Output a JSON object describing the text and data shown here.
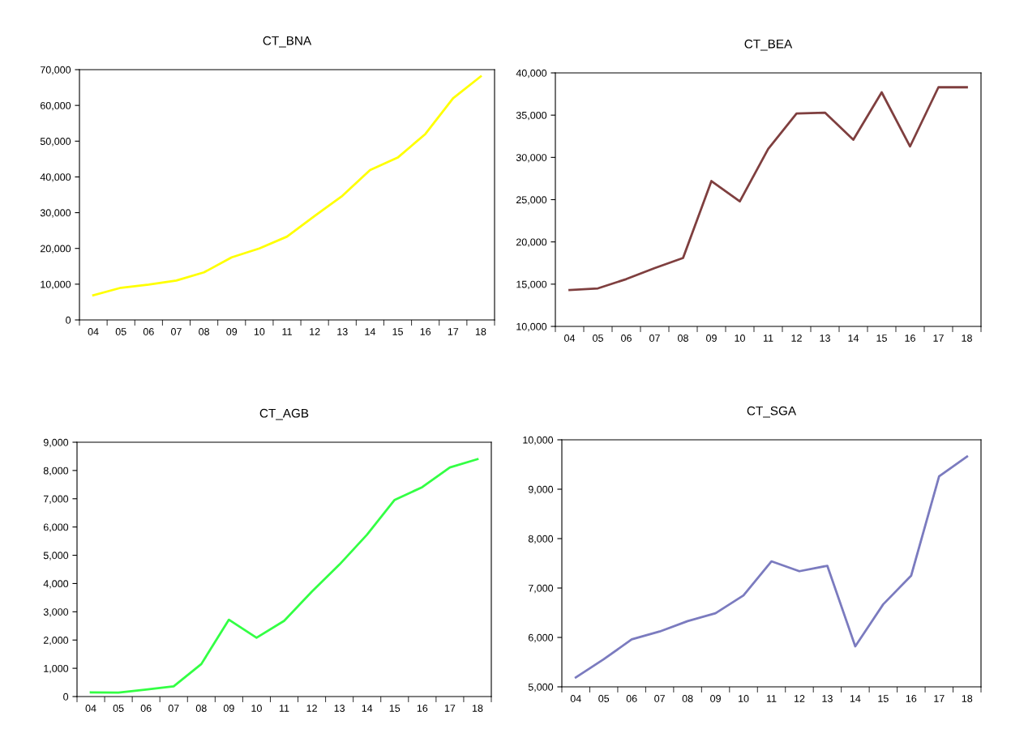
{
  "chart_data": [
    {
      "type": "line",
      "title": "CT_BNA",
      "categories": [
        "04",
        "05",
        "06",
        "07",
        "08",
        "09",
        "10",
        "11",
        "12",
        "13",
        "14",
        "15",
        "16",
        "17",
        "18"
      ],
      "series": [
        {
          "color": "#ffff00",
          "values": [
            6900,
            9000,
            9900,
            11000,
            13300,
            17500,
            20000,
            23300,
            29100,
            34700,
            41900,
            45400,
            52000,
            62000,
            68100
          ]
        }
      ],
      "ylim": [
        0,
        70000
      ],
      "yticks": [
        {
          "value": 0,
          "label": "0"
        },
        {
          "value": 10000,
          "label": "10,000"
        },
        {
          "value": 20000,
          "label": "20,000"
        },
        {
          "value": 30000,
          "label": "30,000"
        },
        {
          "value": 40000,
          "label": "40,000"
        },
        {
          "value": 50000,
          "label": "50,000"
        },
        {
          "value": 60000,
          "label": "60,000"
        },
        {
          "value": 70000,
          "label": "70,000"
        }
      ],
      "grid": false
    },
    {
      "type": "line",
      "title": "CT_BEA",
      "categories": [
        "04",
        "05",
        "06",
        "07",
        "08",
        "09",
        "10",
        "11",
        "12",
        "13",
        "14",
        "15",
        "16",
        "17",
        "18"
      ],
      "series": [
        {
          "color": "#7f3f3f",
          "values": [
            14300,
            14500,
            15600,
            16900,
            18100,
            27200,
            24800,
            31000,
            35200,
            35300,
            32100,
            37700,
            31300,
            38300,
            38300
          ]
        }
      ],
      "ylim": [
        10000,
        40000
      ],
      "yticks": [
        {
          "value": 10000,
          "label": "10,000"
        },
        {
          "value": 15000,
          "label": "15,000"
        },
        {
          "value": 20000,
          "label": "20,000"
        },
        {
          "value": 25000,
          "label": "25,000"
        },
        {
          "value": 30000,
          "label": "30,000"
        },
        {
          "value": 35000,
          "label": "35,000"
        },
        {
          "value": 40000,
          "label": "40,000"
        }
      ],
      "grid": false
    },
    {
      "type": "line",
      "title": "CT_AGB",
      "categories": [
        "04",
        "05",
        "06",
        "07",
        "08",
        "09",
        "10",
        "11",
        "12",
        "13",
        "14",
        "15",
        "16",
        "17",
        "18"
      ],
      "series": [
        {
          "color": "#33ff44",
          "values": [
            150,
            140,
            250,
            360,
            1150,
            2720,
            2080,
            2680,
            3710,
            4670,
            5730,
            6960,
            7410,
            8110,
            8400
          ]
        }
      ],
      "ylim": [
        0,
        9000
      ],
      "yticks": [
        {
          "value": 0,
          "label": "0"
        },
        {
          "value": 1000,
          "label": "1,000"
        },
        {
          "value": 2000,
          "label": "2,000"
        },
        {
          "value": 3000,
          "label": "3,000"
        },
        {
          "value": 4000,
          "label": "4,000"
        },
        {
          "value": 5000,
          "label": "5,000"
        },
        {
          "value": 6000,
          "label": "6,000"
        },
        {
          "value": 7000,
          "label": "7,000"
        },
        {
          "value": 8000,
          "label": "8,000"
        },
        {
          "value": 9000,
          "label": "9,000"
        }
      ],
      "grid": false
    },
    {
      "type": "line",
      "title": "CT_SGA",
      "categories": [
        "04",
        "05",
        "06",
        "07",
        "08",
        "09",
        "10",
        "11",
        "12",
        "13",
        "14",
        "15",
        "16",
        "17",
        "18"
      ],
      "series": [
        {
          "color": "#7b7bbf",
          "values": [
            5190,
            5560,
            5960,
            6120,
            6330,
            6490,
            6850,
            7540,
            7340,
            7450,
            5820,
            6670,
            7250,
            9260,
            9660
          ]
        }
      ],
      "ylim": [
        5000,
        10000
      ],
      "yticks": [
        {
          "value": 5000,
          "label": "5,000"
        },
        {
          "value": 6000,
          "label": "6,000"
        },
        {
          "value": 7000,
          "label": "7,000"
        },
        {
          "value": 8000,
          "label": "8,000"
        },
        {
          "value": 9000,
          "label": "9,000"
        },
        {
          "value": 10000,
          "label": "10,000"
        }
      ],
      "grid": false
    }
  ]
}
